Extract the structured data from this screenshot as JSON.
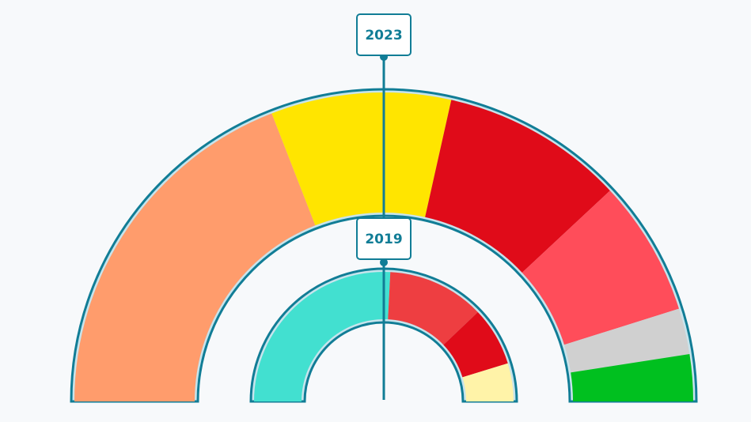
{
  "chart_data": [
    {
      "type": "pie",
      "subtype": "semicircle-donut",
      "title": "2023",
      "unit": "percent",
      "series": [
        {
          "name": "segment-1",
          "value": 38.2,
          "color": "#ff9c6c"
        },
        {
          "name": "segment-2",
          "value": 18.8,
          "color": "#ffe500"
        },
        {
          "name": "segment-3",
          "value": 19.1,
          "color": "#e00b19"
        },
        {
          "name": "segment-4",
          "value": 14.2,
          "color": "#ff4d5a"
        },
        {
          "name": "segment-5",
          "value": 4.8,
          "color": "#d0d0d0"
        },
        {
          "name": "segment-6",
          "value": 4.9,
          "color": "#00c01f"
        }
      ]
    },
    {
      "type": "pie",
      "subtype": "semicircle-donut",
      "title": "2019",
      "unit": "percent",
      "series": [
        {
          "name": "segment-1",
          "value": 51.6,
          "color": "#42e0d0"
        },
        {
          "name": "segment-2",
          "value": 24.2,
          "color": "#ee3e41"
        },
        {
          "name": "segment-3",
          "value": 14.7,
          "color": "#e00b19"
        },
        {
          "name": "segment-4",
          "value": 9.5,
          "color": "#fff3a8"
        }
      ]
    }
  ],
  "colors": {
    "outline": "#117d96",
    "inner_band": "#c7e4ec",
    "background": "#f7f9fb"
  }
}
